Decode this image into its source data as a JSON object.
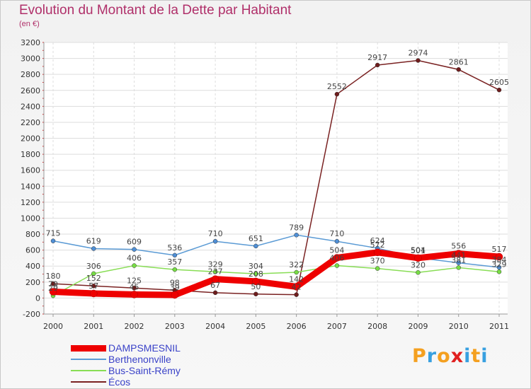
{
  "title": "Evolution du Montant de la Dette par Habitant",
  "subtitle": "(en €)",
  "logo": "Proxiti",
  "chart_data": {
    "type": "line",
    "title": "Evolution du Montant de la Dette par Habitant",
    "subtitle": "(en €)",
    "x": [
      "2000",
      "2001",
      "2002",
      "2003",
      "2004",
      "2005",
      "2006",
      "2007",
      "2008",
      "2009",
      "2010",
      "2011"
    ],
    "ylim": [
      -200,
      3200
    ],
    "yticks": [
      -200,
      0,
      200,
      400,
      600,
      800,
      1000,
      1200,
      1400,
      1600,
      1800,
      2000,
      2200,
      2400,
      2600,
      2800,
      3000,
      3200
    ],
    "grid": true,
    "legend_position": "bottom-left",
    "series": [
      {
        "name": "DAMPSMESNIL",
        "color": "#ee0000",
        "values": [
          79,
          57,
          45,
          39,
          237,
          208,
          142,
          504,
          572,
          501,
          556,
          517
        ]
      },
      {
        "name": "Berthenonville",
        "color": "#5b9bd5",
        "values": [
          715,
          619,
          609,
          536,
          710,
          651,
          789,
          710,
          624,
          504,
          441,
          384
        ]
      },
      {
        "name": "Bus-Saint-Rémy",
        "color": "#88dd55",
        "values": [
          29,
          306,
          406,
          357,
          329,
          304,
          322,
          406,
          370,
          320,
          381,
          329
        ]
      },
      {
        "name": "Écos",
        "color": "#7a2222",
        "values": [
          180,
          152,
          125,
          98,
          67,
          50,
          42,
          2552,
          2917,
          2974,
          2861,
          2605
        ]
      }
    ],
    "data_labels": [
      {
        "series": "DAMPSMESNIL",
        "text": [
          "79",
          "57",
          "45",
          "39",
          "237",
          "208",
          "142",
          "504",
          "572",
          "501",
          "556",
          "517"
        ]
      },
      {
        "series": "Berthenonville",
        "text": [
          "715",
          "619",
          "609",
          "536",
          "710",
          "651",
          "789",
          "710",
          "624",
          "504",
          "441",
          "384"
        ]
      },
      {
        "series": "Bus-Saint-Rémy",
        "text": [
          "29",
          "306",
          "406",
          "357",
          "329",
          "304",
          "322",
          "406",
          "370",
          "320",
          "381",
          "329"
        ]
      },
      {
        "series": "Écos",
        "text": [
          "180",
          "152",
          "125",
          "98",
          "67",
          "50",
          "42",
          "2552",
          "2917",
          "2974",
          "2861",
          "2605"
        ]
      }
    ]
  }
}
